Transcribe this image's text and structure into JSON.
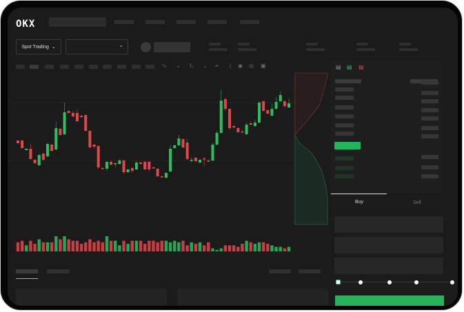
{
  "brand": {
    "logo_text": "OKX"
  },
  "toolbar": {
    "market_type_label": "Spot Trading",
    "market_type_icon": "chevron-down-icon",
    "pair_select_icon": "chevron-down-icon"
  },
  "chart_tools": [
    "indicator-icon",
    "chart-type-icon",
    "drawing-icon",
    "line-icon",
    "ruler-icon",
    "camera-icon",
    "settings-icon",
    "fullscreen-icon"
  ],
  "orderbook": {
    "view_icons": [
      "orderbook-both-icon",
      "orderbook-bids-icon",
      "orderbook-asks-icon"
    ]
  },
  "order_form": {
    "tabs": [
      {
        "label": "Buy",
        "active": true
      },
      {
        "label": "Sell",
        "active": false
      }
    ],
    "slider_percent": 0
  },
  "colors": {
    "up": "#2ebd5f",
    "down": "#e0474c",
    "background": "#1b1b1b"
  },
  "chart_data": {
    "type": "candlestick",
    "grid": true,
    "candles": [
      [
        97,
        97,
        93,
        93
      ],
      [
        97,
        98,
        85,
        86
      ],
      [
        83,
        86,
        83,
        85
      ],
      [
        85,
        92,
        70,
        70
      ],
      [
        69,
        70,
        63,
        64
      ],
      [
        61,
        77,
        60,
        76
      ],
      [
        78,
        79,
        68,
        69
      ],
      [
        74,
        93,
        73,
        92
      ],
      [
        91,
        92,
        81,
        82
      ],
      [
        84,
        124,
        83,
        115
      ],
      [
        114,
        115,
        104,
        105
      ],
      [
        106,
        152,
        105,
        138
      ],
      [
        140,
        141,
        136,
        137
      ],
      [
        137,
        140,
        131,
        132
      ],
      [
        137,
        142,
        124,
        125
      ],
      [
        133,
        134,
        130,
        131
      ],
      [
        134,
        135,
        110,
        111
      ],
      [
        111,
        112,
        86,
        87
      ],
      [
        91,
        92,
        85,
        88
      ],
      [
        89,
        90,
        55,
        58
      ],
      [
        57,
        58,
        55,
        56
      ],
      [
        56,
        67,
        53,
        66
      ],
      [
        66,
        68,
        61,
        62
      ],
      [
        63,
        65,
        58,
        64
      ],
      [
        63,
        70,
        62,
        68
      ],
      [
        68,
        69,
        48,
        51
      ],
      [
        51,
        56,
        50,
        55
      ],
      [
        57,
        58,
        50,
        53
      ],
      [
        55,
        67,
        54,
        65
      ],
      [
        65,
        66,
        62,
        63
      ],
      [
        66,
        67,
        54,
        55
      ],
      [
        66,
        67,
        52,
        55
      ],
      [
        58,
        59,
        56,
        57
      ],
      [
        56,
        57,
        44,
        45
      ],
      [
        45,
        46,
        43,
        44
      ],
      [
        43,
        51,
        42,
        50
      ],
      [
        52,
        90,
        51,
        85
      ],
      [
        86,
        91,
        85,
        90
      ],
      [
        90,
        105,
        89,
        100
      ],
      [
        99,
        100,
        86,
        87
      ],
      [
        94,
        99,
        69,
        70
      ],
      [
        68,
        72,
        65,
        69
      ],
      [
        72,
        73,
        66,
        67
      ],
      [
        65,
        70,
        64,
        69
      ],
      [
        71,
        73,
        60,
        70
      ],
      [
        68,
        70,
        66,
        67
      ],
      [
        68,
        94,
        67,
        91
      ],
      [
        91,
        111,
        90,
        108
      ],
      [
        108,
        171,
        107,
        155
      ],
      [
        157,
        159,
        140,
        143
      ],
      [
        143,
        144,
        112,
        115
      ],
      [
        118,
        119,
        115,
        116
      ],
      [
        115,
        116,
        108,
        109
      ],
      [
        110,
        113,
        108,
        109
      ],
      [
        106,
        123,
        105,
        120
      ],
      [
        122,
        125,
        119,
        120
      ],
      [
        118,
        127,
        117,
        123
      ],
      [
        123,
        154,
        122,
        152
      ],
      [
        154,
        155,
        139,
        140
      ],
      [
        141,
        142,
        135,
        136
      ],
      [
        133,
        150,
        132,
        143
      ],
      [
        143,
        160,
        142,
        153
      ],
      [
        154,
        168,
        153,
        163
      ],
      [
        154,
        155,
        144,
        147
      ],
      [
        145,
        158,
        144,
        151
      ]
    ],
    "volumes": [
      6,
      7,
      4,
      7,
      5,
      8,
      6,
      6,
      6,
      10,
      8,
      10,
      8,
      7,
      7,
      5,
      6,
      8,
      6,
      7,
      6,
      10,
      7,
      7,
      4,
      7,
      5,
      7,
      7,
      7,
      5,
      7,
      7,
      6,
      7,
      7,
      6,
      7,
      6,
      7,
      4,
      6,
      5,
      6,
      4,
      6,
      2,
      1,
      2,
      4,
      4,
      4,
      3,
      5,
      7,
      6,
      5,
      6,
      6,
      5,
      4,
      3,
      3,
      2,
      3
    ]
  }
}
